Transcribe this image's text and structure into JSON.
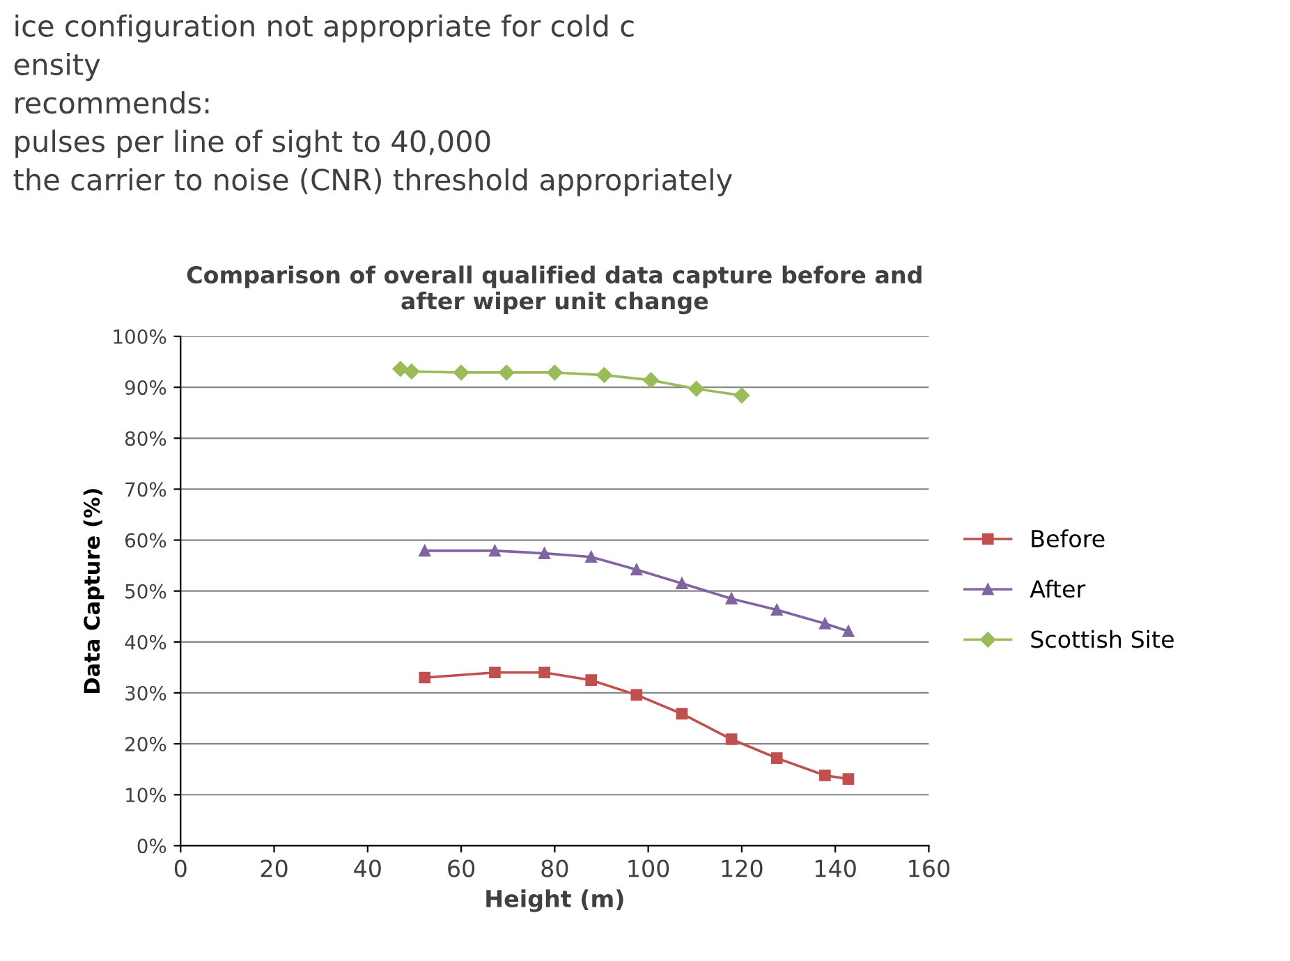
{
  "chart_data": {
    "type": "line",
    "title": "Comparison of overall qualified data capture before and\nafter wiper unit change",
    "xlabel": "Height (m)",
    "ylabel": "Data Capture (%)",
    "annotations": [
      "ice configuration not appropriate for cold c",
      "ensity",
      "recommends:",
      "pulses per line of sight to 40,000",
      "the carrier to noise (CNR) threshold appropriately"
    ],
    "series": [
      {
        "name": "Before",
        "color": "#c0504d",
        "marker": "square",
        "x": [
          52.2,
          67.2,
          77.8,
          87.8,
          97.5,
          107.2,
          117.8,
          127.5,
          137.8,
          142.8
        ],
        "values": [
          33,
          34,
          34,
          32.5,
          29.6,
          25.9,
          20.9,
          17.2,
          13.8,
          13.1
        ]
      },
      {
        "name": "After",
        "color": "#8064a2",
        "marker": "triangle",
        "x": [
          52.2,
          67.2,
          77.8,
          87.8,
          97.5,
          107.2,
          117.8,
          127.5,
          137.8,
          142.8
        ],
        "values": [
          57.9,
          57.9,
          57.4,
          56.7,
          54.2,
          51.5,
          48.5,
          46.3,
          43.6,
          42.1
        ]
      },
      {
        "name": "Scottish Site",
        "color": "#9bbb59",
        "marker": "diamond",
        "x": [
          47,
          49.4,
          60,
          69.7,
          80,
          90.6,
          100.6,
          110.3,
          120
        ],
        "values": [
          93.6,
          93.1,
          92.9,
          92.9,
          92.9,
          92.4,
          91.4,
          89.7,
          88.4
        ]
      }
    ],
    "xlim": [
      0,
      160
    ],
    "xticks": [
      0,
      20,
      40,
      60,
      80,
      100,
      120,
      140,
      160
    ],
    "ylim": [
      0,
      100
    ],
    "yticks": [
      {
        "value": 0,
        "label": "0%"
      },
      {
        "value": 10,
        "label": "10%"
      },
      {
        "value": 20,
        "label": "20%"
      },
      {
        "value": 30,
        "label": "30%"
      },
      {
        "value": 40,
        "label": "40%"
      },
      {
        "value": 50,
        "label": "50%"
      },
      {
        "value": 60,
        "label": "60%"
      },
      {
        "value": 70,
        "label": "70%"
      },
      {
        "value": 80,
        "label": "80%"
      },
      {
        "value": 90,
        "label": "90%"
      },
      {
        "value": 100,
        "label": "100%"
      }
    ],
    "grid": "y",
    "legend": "right"
  }
}
